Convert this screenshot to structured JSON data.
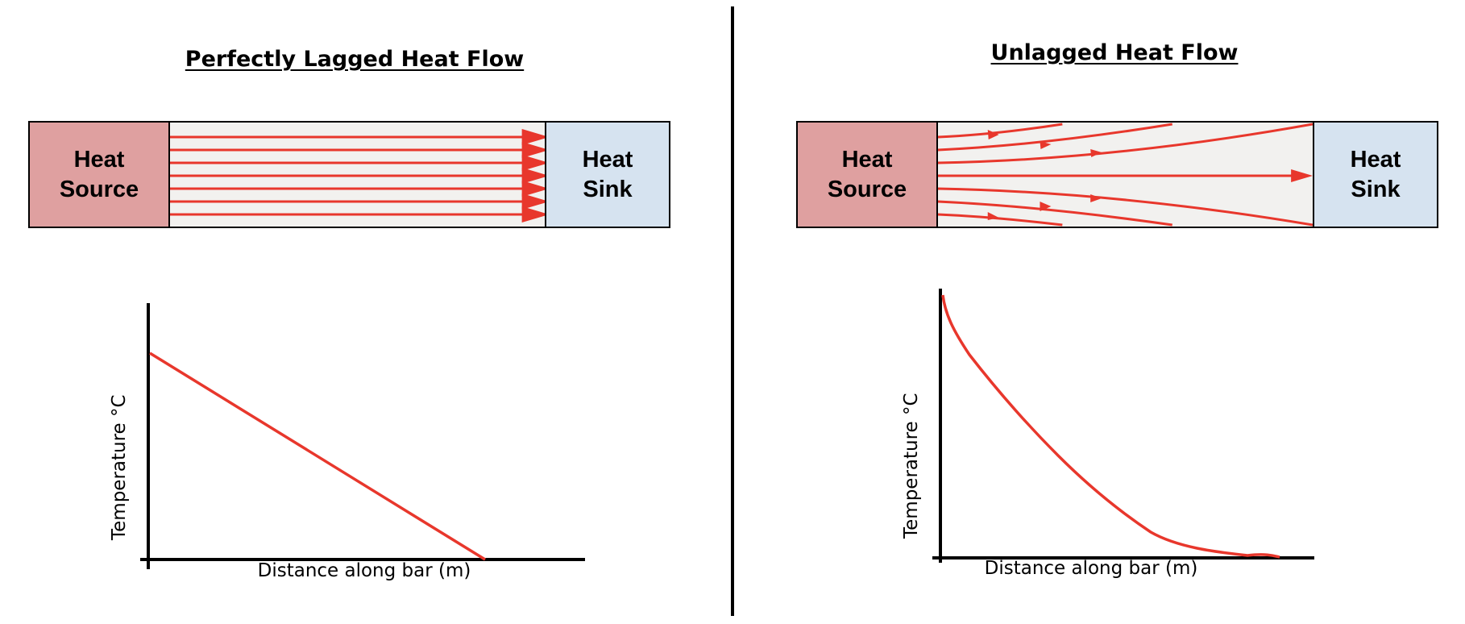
{
  "left": {
    "title": "Perfectly Lagged Heat Flow",
    "source_label": "Heat\nSource",
    "sink_label": "Heat\nSink",
    "graph": {
      "ylabel": "Temperature °C",
      "xlabel": "Distance along bar (m)"
    }
  },
  "right": {
    "title": "Unlagged Heat Flow",
    "source_label": "Heat\nSource",
    "sink_label": "Heat\nSink",
    "graph": {
      "ylabel": "Temperature °C",
      "xlabel": "Distance along bar (m)"
    }
  },
  "colors": {
    "flow": "#e8372c",
    "source_fill": "#dfa0a0",
    "sink_fill": "#d6e3f0",
    "bar_fill": "#f2f1ef"
  }
}
